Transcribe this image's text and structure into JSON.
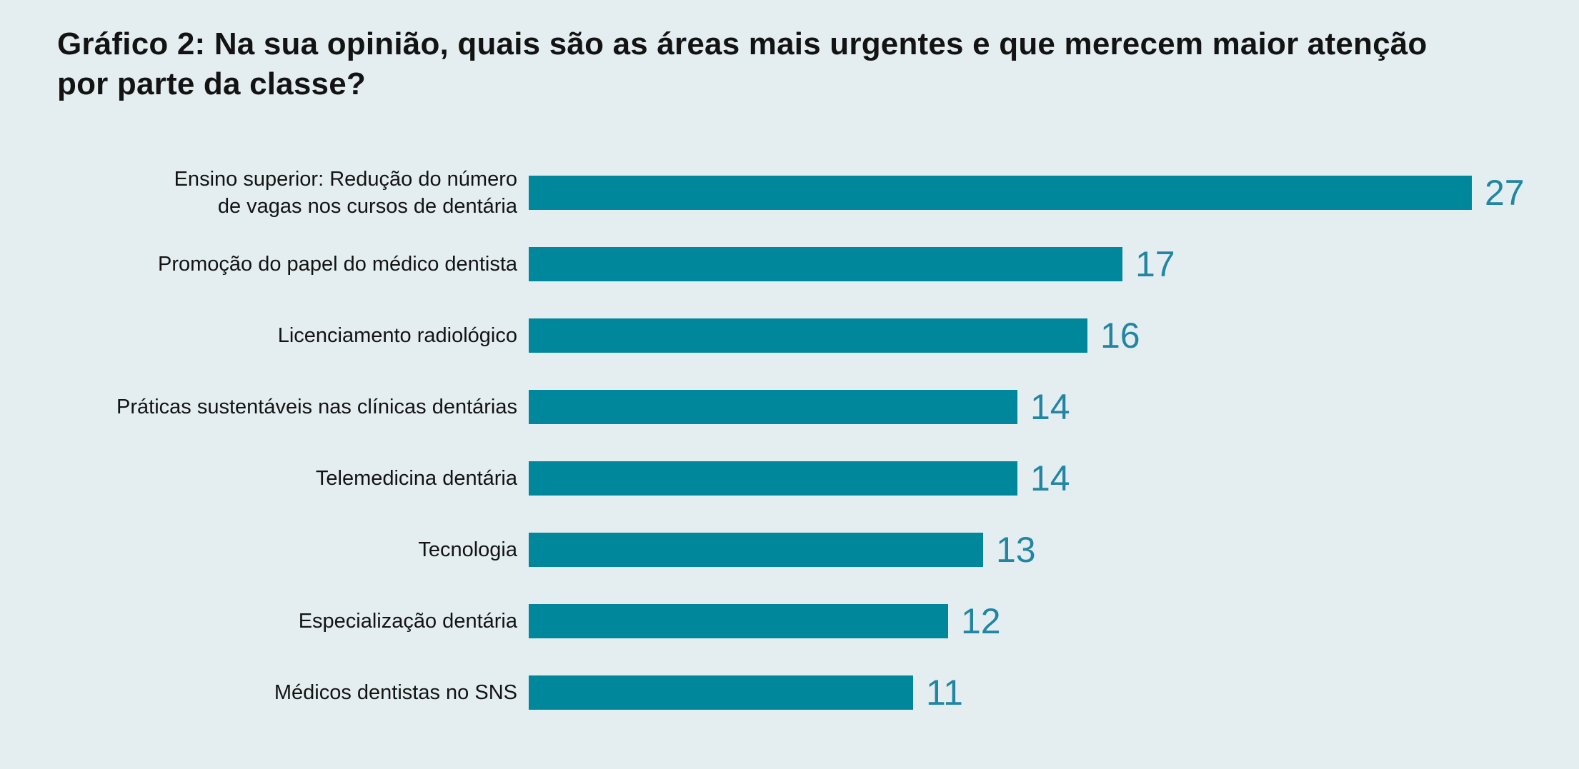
{
  "chart_data": {
    "type": "bar",
    "orientation": "horizontal",
    "title": "Gráfico 2: Na sua opinião, quais são as áreas mais urgentes e que merecem maior atenção\npor parte da classe?",
    "categories": [
      "Ensino superior: Redução do número\nde vagas nos cursos de dentária",
      "Promoção do papel do médico dentista",
      "Licenciamento radiológico",
      "Práticas sustentáveis nas clínicas dentárias",
      "Telemedicina dentária",
      "Tecnologia",
      "Especialização dentária",
      "Médicos dentistas no SNS"
    ],
    "values": [
      27,
      17,
      16,
      14,
      14,
      13,
      12,
      11
    ],
    "xlim": [
      0,
      27
    ],
    "grid": false,
    "legend": "none",
    "value_labels_position": "end-of-bar",
    "bar_color": "#00879b",
    "value_label_color": "#2286a3",
    "text_color": "#131313",
    "background_color": "#e4eef0"
  }
}
